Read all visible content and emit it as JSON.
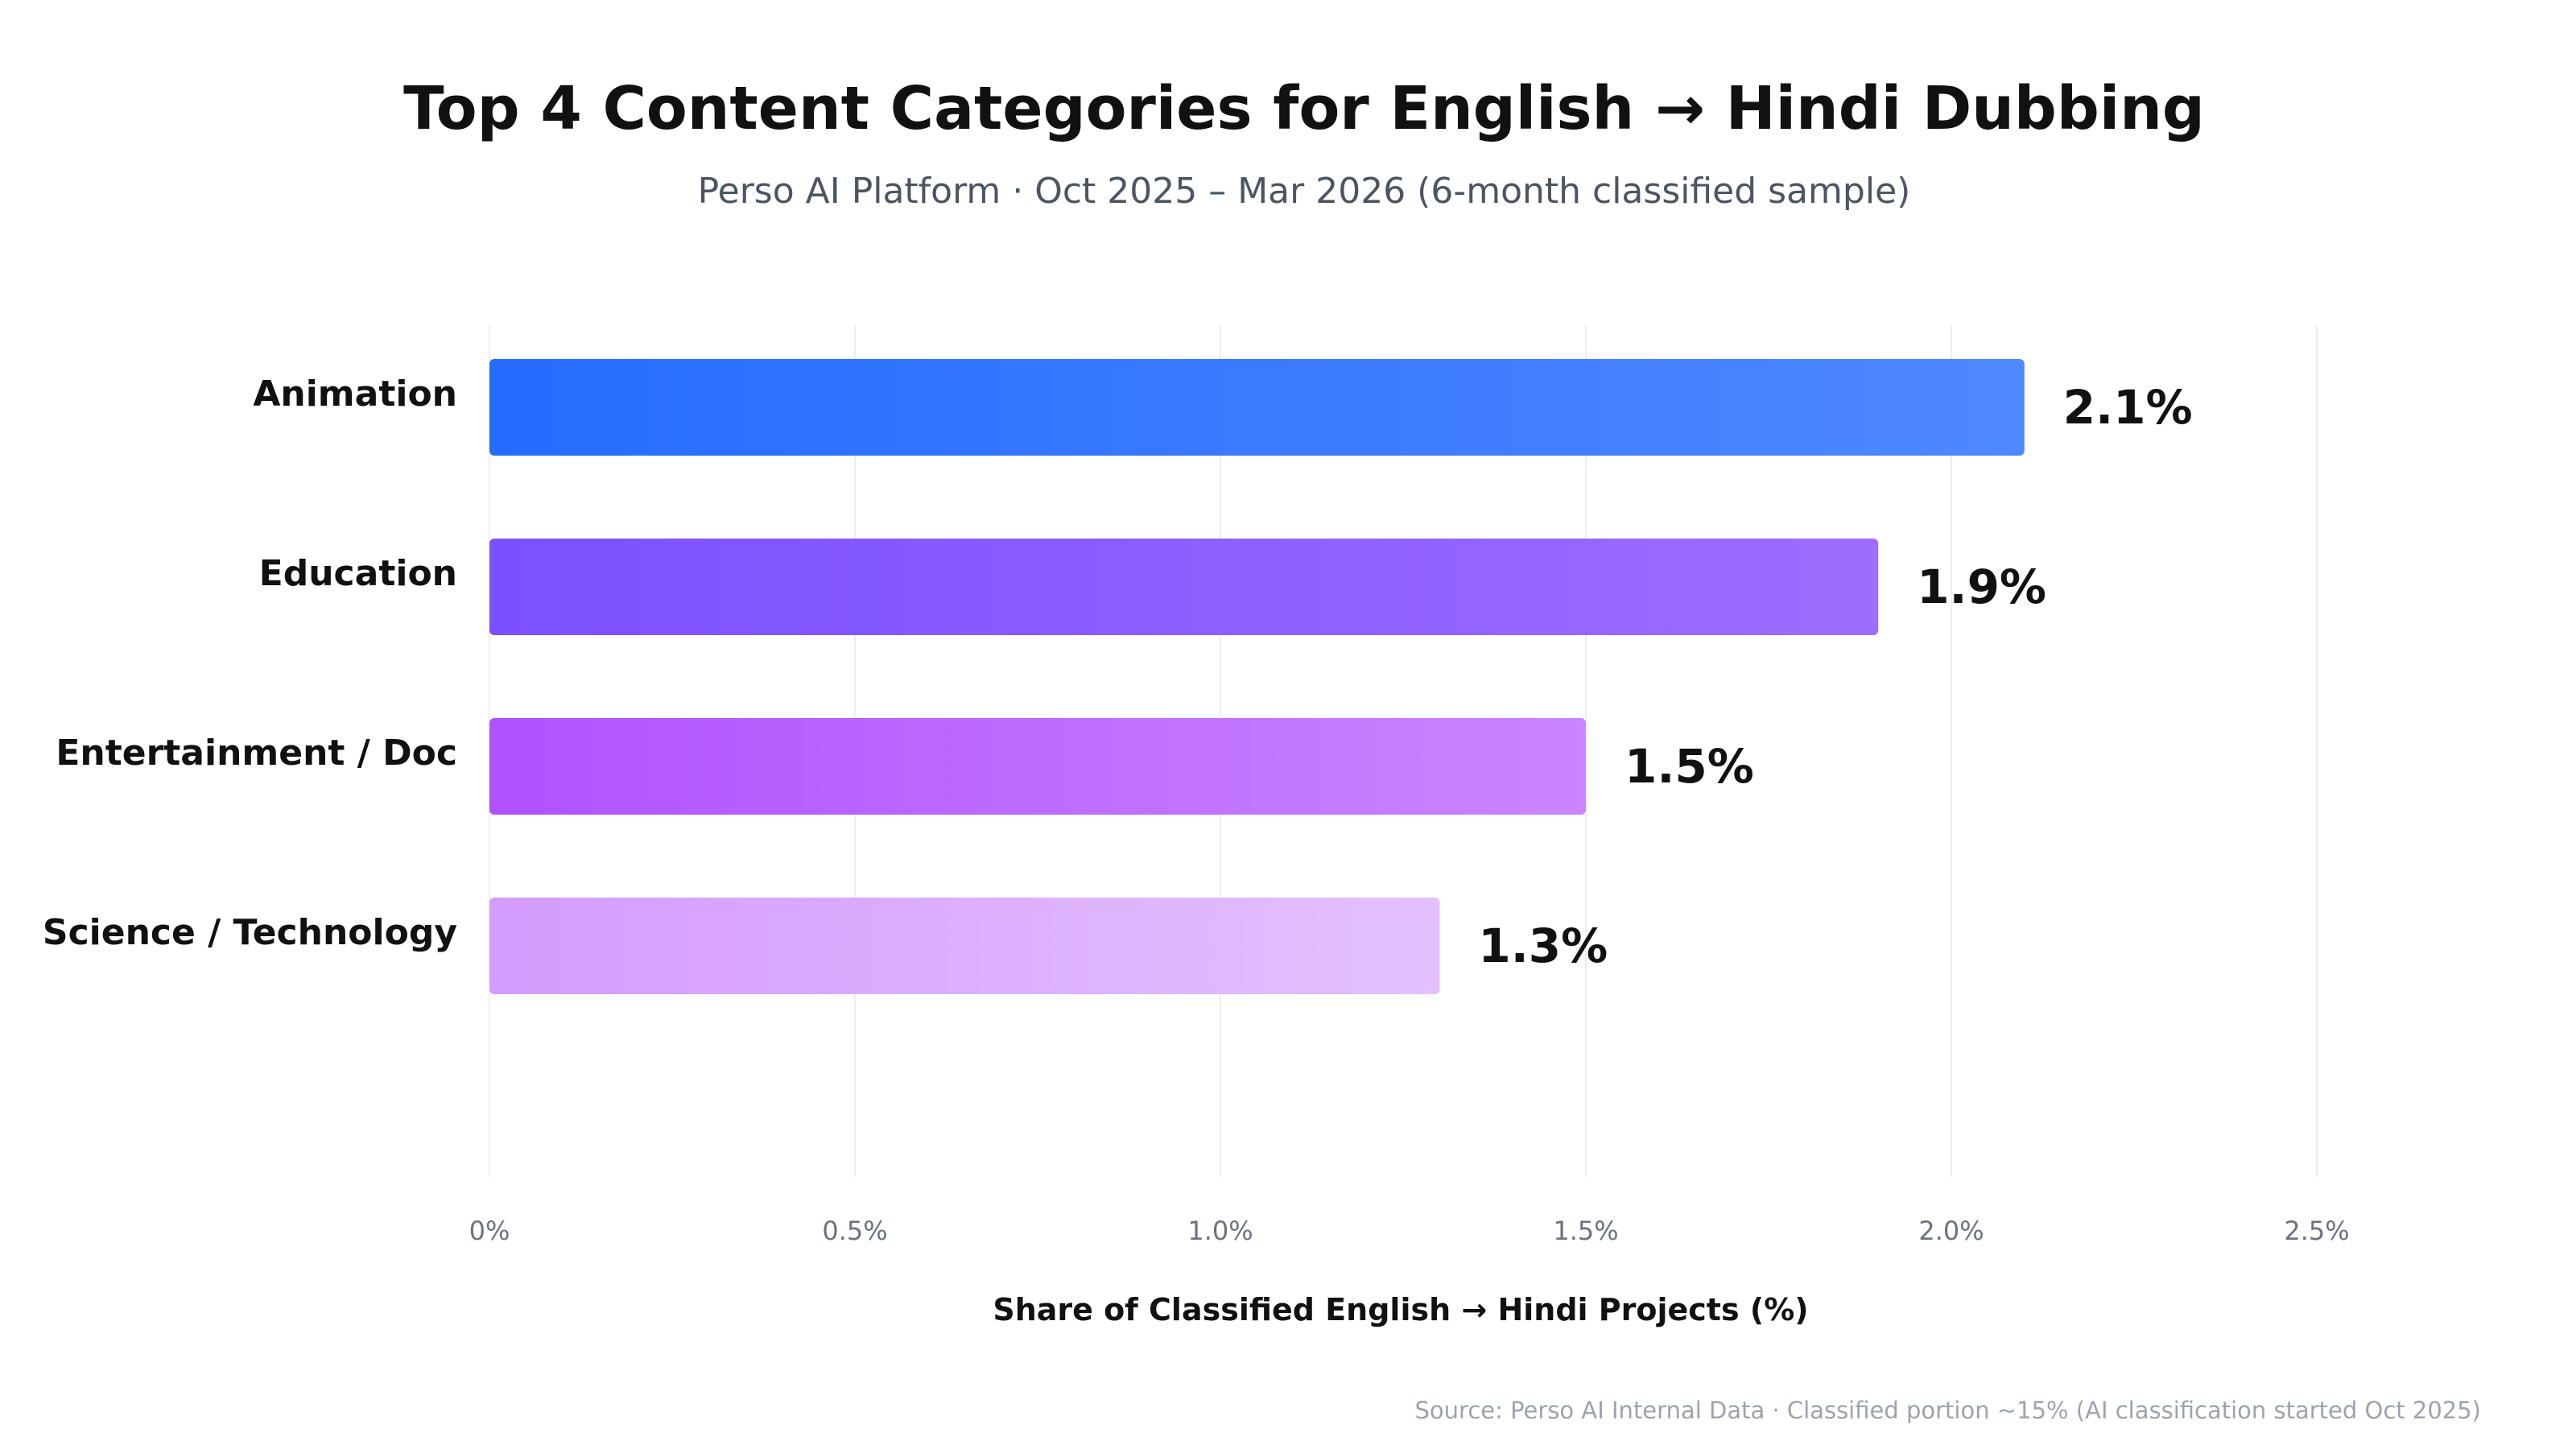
{
  "chart_data": {
    "type": "bar",
    "orientation": "horizontal",
    "title": "Top 4 Content Categories for English → Hindi Dubbing",
    "subtitle": "Perso AI Platform · Oct 2025 – Mar 2026 (6-month classified sample)",
    "categories": [
      "Animation",
      "Education",
      "Entertainment / Doc",
      "Science / Technology"
    ],
    "values": [
      2.1,
      1.9,
      1.5,
      1.3
    ],
    "value_labels": [
      "2.1%",
      "1.9%",
      "1.5%",
      "1.3%"
    ],
    "xlabel": "Share of Classified English → Hindi Projects (%)",
    "ylabel": "",
    "xlim": [
      0,
      2.5
    ],
    "xticks": [
      0,
      0.5,
      1.0,
      1.5,
      2.0,
      2.5
    ],
    "xtick_labels": [
      "0%",
      "0.5%",
      "1.0%",
      "1.5%",
      "2.0%",
      "2.5%"
    ],
    "grid": "vertical",
    "source": "Source: Perso AI Internal Data · Classified portion ~15% (AI classification started Oct 2025)",
    "bar_colors": [
      [
        "#256cff",
        "#4f88ff"
      ],
      [
        "#7b50ff",
        "#9d6dff"
      ],
      [
        "#b052ff",
        "#cb85ff"
      ],
      [
        "#d39cff",
        "#e4c0ff"
      ]
    ]
  }
}
